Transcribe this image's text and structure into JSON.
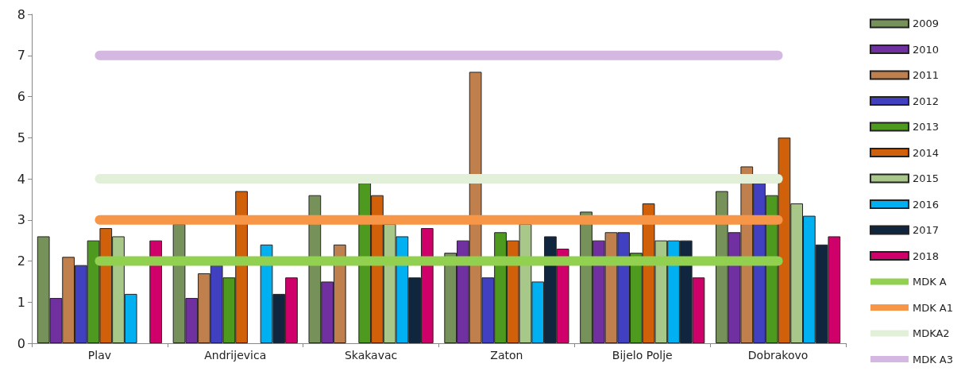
{
  "chart_data": {
    "type": "bar",
    "categories": [
      "Plav",
      "Andrijevica",
      "Skakavac",
      "Zaton",
      "Bijelo Polje",
      "Dobrakovo"
    ],
    "series": [
      {
        "name": "2009",
        "color": "#76925a",
        "values": [
          2.6,
          2.9,
          3.6,
          2.2,
          3.2,
          3.7
        ]
      },
      {
        "name": "2010",
        "color": "#7030a0",
        "values": [
          1.1,
          1.1,
          1.5,
          2.5,
          2.5,
          2.7
        ]
      },
      {
        "name": "2011",
        "color": "#c0804d",
        "values": [
          2.1,
          1.7,
          2.4,
          6.6,
          2.7,
          4.3
        ]
      },
      {
        "name": "2012",
        "color": "#4040c0",
        "values": [
          1.9,
          1.9,
          null,
          1.6,
          2.7,
          3.9
        ]
      },
      {
        "name": "2013",
        "color": "#4e9a1e",
        "values": [
          2.5,
          1.6,
          3.9,
          2.7,
          2.2,
          3.6
        ]
      },
      {
        "name": "2014",
        "color": "#d0600a",
        "values": [
          2.8,
          3.7,
          3.6,
          2.5,
          3.4,
          5.0
        ]
      },
      {
        "name": "2015",
        "color": "#a8c88a",
        "values": [
          2.6,
          null,
          2.9,
          2.9,
          2.5,
          3.4
        ]
      },
      {
        "name": "2016",
        "color": "#00b0f0",
        "values": [
          1.2,
          2.4,
          2.6,
          1.5,
          2.5,
          3.1
        ]
      },
      {
        "name": "2017",
        "color": "#10263f",
        "values": [
          null,
          1.2,
          1.6,
          2.6,
          2.5,
          2.4
        ]
      },
      {
        "name": "2018",
        "color": "#d0006a",
        "values": [
          2.5,
          1.6,
          2.8,
          2.3,
          1.6,
          2.6
        ]
      },
      {
        "name": "MDK A",
        "type": "line",
        "color": "#92d050",
        "values": [
          2,
          2,
          2,
          2,
          2,
          2
        ]
      },
      {
        "name": "MDK A1",
        "type": "line",
        "color": "#f79646",
        "values": [
          3,
          3,
          3,
          3,
          3,
          3
        ]
      },
      {
        "name": "MDKA2",
        "type": "line",
        "color": "#e2f0d9",
        "values": [
          4,
          4,
          4,
          4,
          4,
          4
        ]
      },
      {
        "name": "MDK A3",
        "type": "line",
        "color": "#d5b8e2",
        "values": [
          7,
          7,
          7,
          7,
          7,
          7
        ]
      }
    ],
    "ylim": [
      0,
      8
    ],
    "yticks": [
      0,
      1,
      2,
      3,
      4,
      5,
      6,
      7,
      8
    ],
    "grid": false,
    "legend": "right",
    "marker": "none",
    "line_style": "solid"
  }
}
